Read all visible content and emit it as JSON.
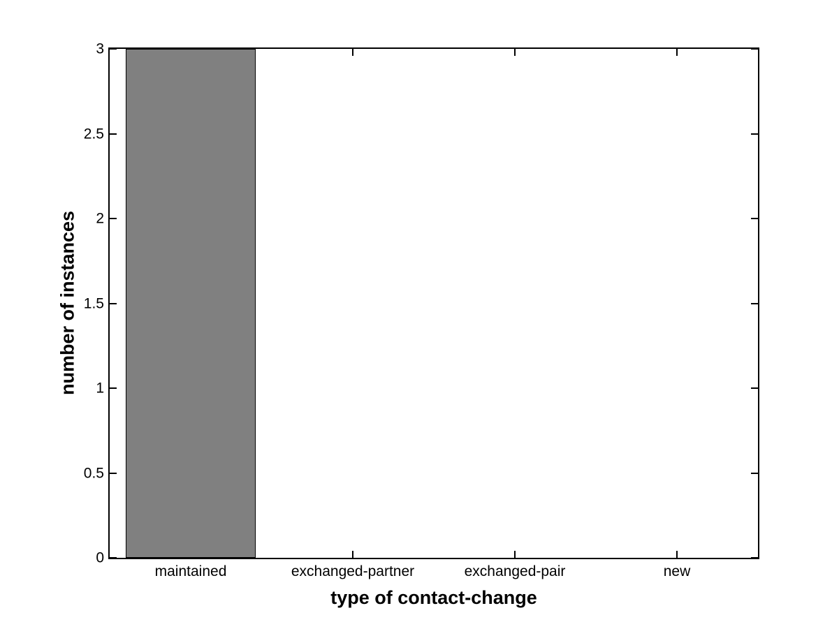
{
  "chart_data": {
    "type": "bar",
    "title": "",
    "xlabel": "type of contact-change",
    "ylabel": "number of instances",
    "categories": [
      "maintained",
      "exchanged-partner",
      "exchanged-pair",
      "new"
    ],
    "values": [
      3,
      0,
      0,
      0
    ],
    "ylim": [
      0,
      3
    ],
    "yticks": [
      0,
      0.5,
      1,
      1.5,
      2,
      2.5,
      3
    ],
    "ytick_labels": [
      "0",
      "0.5",
      "1",
      "1.5",
      "2",
      "2.5",
      "3"
    ],
    "bar_width_fraction": 0.8,
    "bar_color": "#808080",
    "bar_edge_color": "#000000",
    "axis_color": "#000000",
    "background_color": "#ffffff",
    "grid": false,
    "legend": false
  }
}
